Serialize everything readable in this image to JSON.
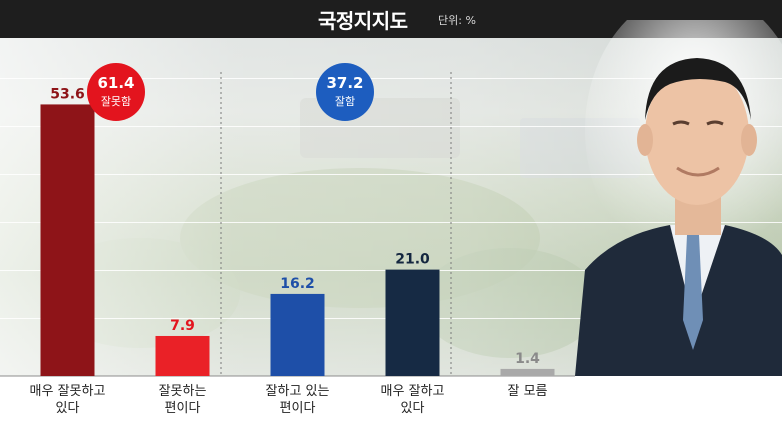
{
  "header": {
    "title": "국정지지도",
    "unit": "단위: %"
  },
  "summary": [
    {
      "value": "61.4",
      "label": "잘못함",
      "color": "#e3141e"
    },
    {
      "value": "37.2",
      "label": "잘함",
      "color": "#1d5dbf"
    }
  ],
  "chart_data": {
    "type": "bar",
    "title": "국정지지도",
    "unit": "%",
    "categories": [
      [
        "매우 잘못하고",
        "있다"
      ],
      [
        "잘못하는",
        "편이다"
      ],
      [
        "잘하고 있는",
        "편이다"
      ],
      [
        "매우 잘하고",
        "있다"
      ],
      [
        "잘 모름"
      ]
    ],
    "values": [
      53.6,
      7.9,
      16.2,
      21.0,
      1.4
    ],
    "value_labels": [
      "53.6",
      "7.9",
      "16.2",
      "21.0",
      "1.4"
    ],
    "colors": [
      "#8e1418",
      "#ea2127",
      "#1e4fa8",
      "#162a44",
      "#a9a9a9"
    ],
    "label_colors": [
      "#8e1418",
      "#e3141e",
      "#1e4fa8",
      "#14263f",
      "#8a8a8a"
    ],
    "ylim": [
      0,
      60
    ],
    "grid": true,
    "legend": "none"
  }
}
